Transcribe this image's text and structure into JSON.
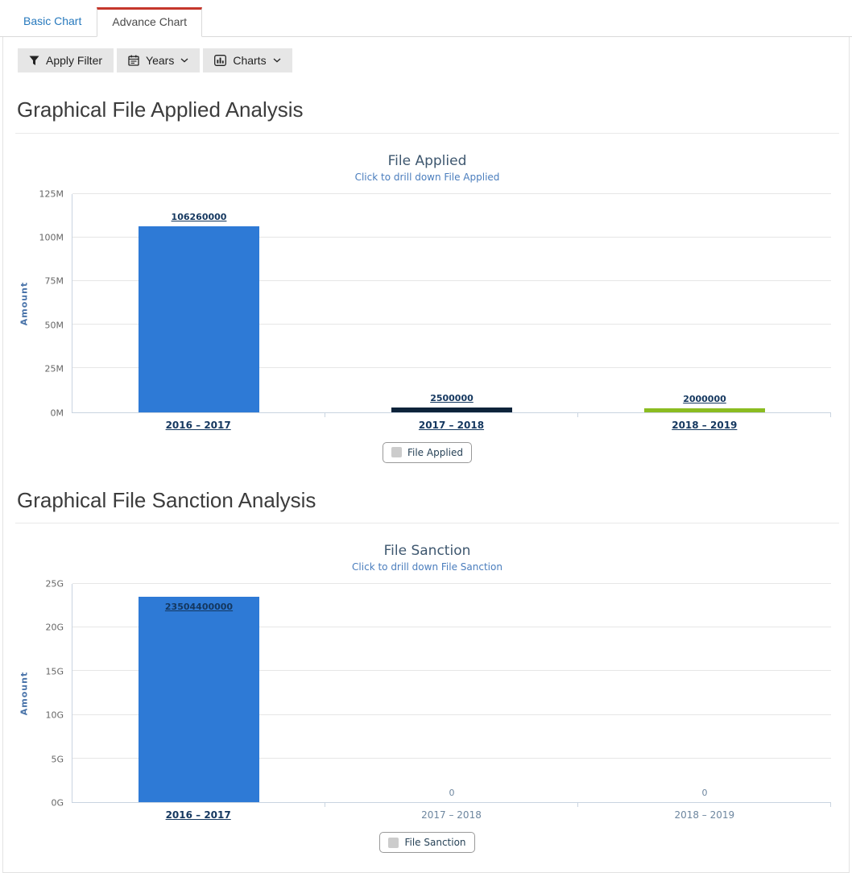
{
  "tabs": [
    {
      "label": "Basic Chart",
      "active": false
    },
    {
      "label": "Advance Chart",
      "active": true
    }
  ],
  "toolbar": {
    "buttons": [
      {
        "label": "Apply Filter",
        "icon": "filter-icon",
        "caret": false
      },
      {
        "label": "Years",
        "icon": "calendar-icon",
        "caret": true
      },
      {
        "label": "Charts",
        "icon": "bar-chart-icon",
        "caret": true
      }
    ]
  },
  "sections": [
    {
      "heading": "Graphical File Applied Analysis"
    },
    {
      "heading": "Graphical File Sanction Analysis"
    }
  ],
  "colors": {
    "active_tab_accent": "#c5372c",
    "link_blue": "#2779bd",
    "drill_label": "#14375f",
    "axis_line": "#C9D4E0",
    "grid_line": "#E6E6E6",
    "legend_swatch": "#CCCCCC"
  },
  "chart_data": [
    {
      "type": "bar",
      "title": "File Applied",
      "subtitle": "Click to drill down File Applied",
      "ylabel": "Amount",
      "xlabel": "",
      "categories": [
        "2016 – 2017",
        "2017 – 2018",
        "2018 – 2019"
      ],
      "values": [
        106260000,
        2500000,
        2000000
      ],
      "bar_colors": [
        "#2e7ad6",
        "#0d233a",
        "#8bbc21"
      ],
      "ylim": [
        0,
        125000000
      ],
      "ytick_labels": [
        "0M",
        "25M",
        "50M",
        "75M",
        "100M",
        "125M"
      ],
      "legend": "File Applied",
      "legend_position": "bottom",
      "grid": true
    },
    {
      "type": "bar",
      "title": "File Sanction",
      "subtitle": "Click to drill down File Sanction",
      "ylabel": "Amount",
      "xlabel": "",
      "categories": [
        "2016 – 2017",
        "2017 – 2018",
        "2018 – 2019"
      ],
      "values": [
        23504400000,
        0,
        0
      ],
      "bar_colors": [
        "#2e7ad6",
        "#0d233a",
        "#8bbc21"
      ],
      "ylim": [
        0,
        25000000000
      ],
      "ytick_labels": [
        "0G",
        "5G",
        "10G",
        "15G",
        "20G",
        "25G"
      ],
      "legend": "File Sanction",
      "legend_position": "bottom",
      "grid": true
    }
  ]
}
